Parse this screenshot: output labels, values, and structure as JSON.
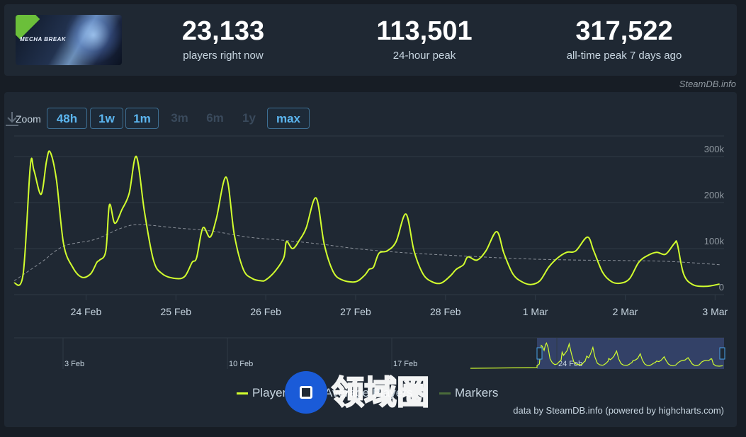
{
  "header": {
    "game_logo_text": "MECHA BREAK",
    "stats": [
      {
        "value": "23,133",
        "label": "players right now"
      },
      {
        "value": "113,501",
        "label": "24-hour peak"
      },
      {
        "value": "317,522",
        "label": "all-time peak 7 days ago"
      }
    ]
  },
  "credit": "SteamDB.info",
  "toolbar": {
    "zoom_label": "Zoom",
    "buttons": [
      {
        "label": "48h",
        "active": true
      },
      {
        "label": "1w",
        "active": true
      },
      {
        "label": "1m",
        "active": true
      },
      {
        "label": "3m",
        "active": false
      },
      {
        "label": "6m",
        "active": false
      },
      {
        "label": "1y",
        "active": false
      },
      {
        "label": "max",
        "active": true
      }
    ],
    "download_icon": "download-icon"
  },
  "colors": {
    "players": "#d2ff2e",
    "average": "#8a9099",
    "grid": "#2f3a46",
    "navigator_fill": "#3b4a7a"
  },
  "chart_data": {
    "type": "line",
    "title": "",
    "xlabel": "",
    "ylabel": "",
    "ylim": [
      0,
      340000
    ],
    "y_ticks": [
      0,
      100000,
      200000,
      300000
    ],
    "y_tick_labels": [
      "0",
      "100k",
      "200k",
      "300k"
    ],
    "x_range": [
      23.2,
      31.1
    ],
    "x_ticks": [
      {
        "x": 24,
        "label": "24 Feb"
      },
      {
        "x": 25,
        "label": "25 Feb"
      },
      {
        "x": 26,
        "label": "26 Feb"
      },
      {
        "x": 27,
        "label": "27 Feb"
      },
      {
        "x": 28,
        "label": "28 Feb"
      },
      {
        "x": 29,
        "label": "1 Mar"
      },
      {
        "x": 30,
        "label": "2 Mar"
      },
      {
        "x": 31,
        "label": "3 Mar"
      }
    ],
    "series": [
      {
        "name": "Players",
        "x": [
          23.2,
          23.3,
          23.38,
          23.42,
          23.5,
          23.56,
          23.6,
          23.67,
          23.75,
          23.85,
          23.95,
          24.05,
          24.12,
          24.15,
          24.22,
          24.26,
          24.32,
          24.4,
          24.48,
          24.56,
          24.65,
          24.75,
          24.85,
          25.0,
          25.1,
          25.18,
          25.23,
          25.3,
          25.38,
          25.45,
          25.56,
          25.65,
          25.75,
          25.85,
          25.95,
          26.0,
          26.1,
          26.2,
          26.23,
          26.3,
          26.38,
          26.45,
          26.56,
          26.65,
          26.75,
          26.85,
          27.0,
          27.1,
          27.15,
          27.2,
          27.26,
          27.35,
          27.45,
          27.56,
          27.65,
          27.75,
          27.85,
          27.95,
          28.05,
          28.12,
          28.2,
          28.25,
          28.35,
          28.45,
          28.57,
          28.65,
          28.75,
          28.85,
          28.95,
          29.05,
          29.15,
          29.25,
          29.35,
          29.45,
          29.58,
          29.65,
          29.75,
          29.85,
          29.95,
          30.05,
          30.15,
          30.25,
          30.35,
          30.45,
          30.55,
          30.58,
          30.65,
          30.75,
          30.9,
          31.05
        ],
        "y": [
          25000,
          45000,
          280000,
          270000,
          218000,
          290000,
          310000,
          250000,
          110000,
          60000,
          38000,
          45000,
          70000,
          75000,
          95000,
          195000,
          155000,
          185000,
          220000,
          300000,
          180000,
          75000,
          45000,
          35000,
          40000,
          70000,
          80000,
          145000,
          125000,
          165000,
          255000,
          130000,
          55000,
          35000,
          30000,
          32000,
          50000,
          80000,
          115000,
          100000,
          120000,
          145000,
          210000,
          110000,
          50000,
          32000,
          28000,
          42000,
          55000,
          60000,
          90000,
          95000,
          115000,
          175000,
          95000,
          45000,
          28000,
          25000,
          40000,
          55000,
          65000,
          82000,
          75000,
          95000,
          137000,
          90000,
          45000,
          28000,
          22000,
          30000,
          60000,
          80000,
          92000,
          95000,
          125000,
          95000,
          48000,
          28000,
          25000,
          35000,
          70000,
          85000,
          92000,
          88000,
          112000,
          110000,
          45000,
          22000,
          18000,
          23000
        ]
      },
      {
        "name": "Average Players",
        "x": [
          23.2,
          23.5,
          23.75,
          24.1,
          24.4,
          24.6,
          25.0,
          25.4,
          25.8,
          26.2,
          26.6,
          27.0,
          27.4,
          27.8,
          28.2,
          28.6,
          29.0,
          29.5,
          30.0,
          30.5,
          31.05
        ],
        "y": [
          30000,
          70000,
          105000,
          120000,
          145000,
          152000,
          145000,
          138000,
          125000,
          118000,
          110000,
          100000,
          93000,
          88000,
          84000,
          80000,
          77000,
          75000,
          74000,
          72000,
          65000
        ]
      }
    ],
    "navigator": {
      "x_ticks": [
        "3 Feb",
        "10 Feb",
        "17 Feb",
        "24 Feb"
      ]
    },
    "legend": [
      "Players",
      "Average Players",
      "Markers"
    ],
    "legend_position": "bottom-center"
  },
  "source_text": "data by SteamDB.info (powered by highcharts.com)",
  "watermark_text": "领域圈"
}
